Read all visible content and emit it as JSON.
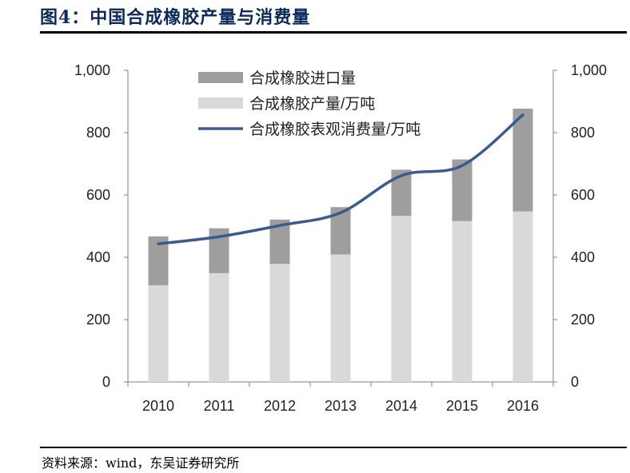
{
  "title": "图4：中国合成橡胶产量与消费量",
  "source": "资料来源：wind，东吴证券研究所",
  "colors": {
    "title": "#0b2a5c",
    "import_bar": "#9e9e9e",
    "production_bar": "#d9d9d9",
    "consumption_line": "#3b5a8f"
  },
  "chart_data": {
    "type": "bar",
    "stacked": true,
    "categories": [
      "2010",
      "2011",
      "2012",
      "2013",
      "2014",
      "2015",
      "2016"
    ],
    "series": [
      {
        "name": "合成橡胶进口量",
        "kind": "bar",
        "axis": "left",
        "values": [
          157,
          144,
          142,
          152,
          148,
          198,
          330
        ]
      },
      {
        "name": "合成橡胶产量/万吨",
        "kind": "bar",
        "axis": "left",
        "values": [
          310,
          349,
          379,
          409,
          533,
          516,
          547
        ]
      },
      {
        "name": "合成橡胶表观消费量/万吨",
        "kind": "line",
        "axis": "right",
        "values": [
          443,
          466,
          502,
          543,
          662,
          694,
          857
        ]
      }
    ],
    "ylim_left": [
      0,
      1000
    ],
    "ylim_right": [
      0,
      1000
    ],
    "yticks": [
      "0",
      "200",
      "400",
      "600",
      "800",
      "1,000"
    ],
    "legend_position": "top-center",
    "grid": false
  }
}
